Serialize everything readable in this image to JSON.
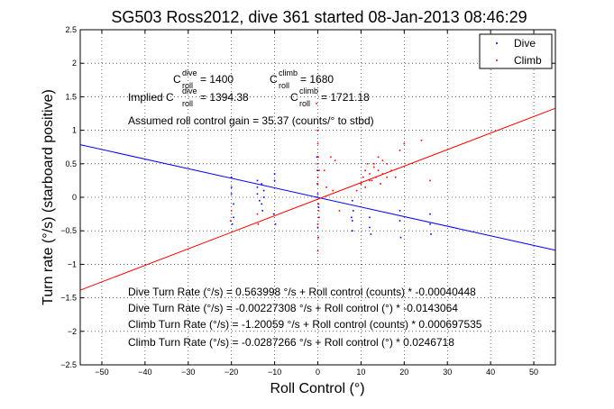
{
  "chart_data": {
    "type": "scatter",
    "title": "SG503 Ross2012, dive 361 started 08-Jan-2013 08:46:29",
    "xlabel": "Roll Control (°)",
    "ylabel": "Turn rate (°/s) (starboard positive)",
    "xlim": [
      -55,
      55
    ],
    "ylim": [
      -2.5,
      2.5
    ],
    "xticks": [
      "−50",
      "−40",
      "−30",
      "−20",
      "−10",
      "0",
      "10",
      "20",
      "30",
      "40",
      "50"
    ],
    "yticks": [
      "2.5",
      "2",
      "1.5",
      "1",
      "0.5",
      "0",
      "−0.5",
      "−1",
      "−1.5",
      "−2",
      "−2.5"
    ],
    "grid": true,
    "legend_position": "top-right",
    "legend": [
      {
        "label": "Dive",
        "color": "#0000ff"
      },
      {
        "label": "Climb",
        "color": "#ff0000"
      }
    ],
    "series": [
      {
        "name": "Dive",
        "color": "#0000ff",
        "x": [
          -20,
          -20,
          -20,
          -19.5,
          -19.5,
          -19.8,
          -14,
          -14,
          -13.5,
          -14,
          -13,
          -13,
          -12.5,
          -12.5,
          -12.8,
          -10,
          -10.2,
          -9.8,
          -10,
          -0.2,
          -0.1,
          0,
          0.1,
          0.2,
          0,
          0.1,
          -0.1,
          0.2,
          8,
          8,
          8.2,
          7.8,
          8,
          12,
          12.3,
          12,
          19,
          19.2,
          19,
          26,
          26.2,
          26
        ],
        "y": [
          0.05,
          0.15,
          0.3,
          -0.1,
          -0.3,
          -0.4,
          0.15,
          0.05,
          -0.05,
          0.25,
          0.2,
          -0.1,
          0.0,
          0.1,
          -0.2,
          0.25,
          -0.25,
          -0.4,
          0.35,
          0.6,
          0.2,
          0.05,
          -0.1,
          -0.3,
          -0.45,
          -0.6,
          0.4,
          -0.15,
          -0.35,
          -0.5,
          -0.2,
          -0.3,
          -0.05,
          -0.3,
          -0.55,
          -0.45,
          -0.35,
          -0.6,
          -0.2,
          -0.4,
          -0.55,
          -0.25
        ]
      },
      {
        "name": "Climb",
        "color": "#ff0000",
        "x": [
          -0.3,
          -0.1,
          0,
          0.1,
          0.3,
          0,
          -0.2,
          0.2,
          0,
          0.1,
          0,
          -0.1,
          0.3,
          0,
          0.2,
          3,
          3.5,
          4,
          5,
          9,
          10,
          10.5,
          11,
          11.5,
          12,
          12.5,
          13,
          13.5,
          14,
          14.5,
          15,
          16,
          17,
          18,
          11,
          12,
          13,
          14,
          15,
          16,
          19,
          20,
          24,
          26,
          -20,
          -20.2,
          -14,
          -13.8,
          1.5,
          2
        ],
        "y": [
          1.4,
          1.0,
          0.8,
          0.6,
          0.4,
          0.2,
          0.0,
          -0.2,
          -0.4,
          -0.6,
          -0.8,
          0.5,
          -0.3,
          0.3,
          -0.1,
          0.6,
          0.1,
          0.55,
          -0.2,
          0.1,
          0.2,
          0.3,
          0.4,
          0.5,
          0.35,
          0.25,
          0.45,
          0.3,
          0.6,
          0.2,
          0.35,
          0.5,
          0.4,
          0.3,
          0.15,
          0.25,
          0.5,
          0.4,
          0.55,
          0.3,
          0.7,
          0.8,
          0.85,
          0.25,
          -0.2,
          -0.35,
          -0.25,
          -0.4,
          0.4,
          0.15
        ]
      }
    ],
    "fit_lines": [
      {
        "color": "#0000ff",
        "slope": -0.0143064,
        "intercept": -0.00227308
      },
      {
        "color": "#ff0000",
        "slope": 0.0246718,
        "intercept": -0.0287266
      }
    ],
    "annotations": {
      "c_dive_symbol": "C",
      "c_dive_sup": "dive",
      "c_dive_sub": "roll",
      "c_dive_value": " = 1400",
      "c_climb_symbol": "C",
      "c_climb_sup": "climb",
      "c_climb_sub": "roll",
      "c_climb_value": " = 1680",
      "implied_prefix": "Implied C",
      "implied_dive_sup": "dive",
      "implied_dive_sub": "roll",
      "implied_dive_value": " = 1394.38",
      "implied_climb_symbol": "C",
      "implied_climb_sup": "climb",
      "implied_climb_sub": "roll",
      "implied_climb_value": " = 1721.18",
      "gain": "Assumed roll control gain = 35.37 (counts/° to stbd)",
      "eq1": "Dive Turn Rate (°/s) = 0.563998 °/s + Roll control (counts) * -0.00040448",
      "eq2": "Dive Turn Rate (°/s) = -0.00227308 °/s + Roll control (°) * -0.0143064",
      "eq3": "Climb Turn Rate (°/s) = -1.20059 °/s + Roll control (counts) * 0.000697535",
      "eq4": "Climb Turn Rate (°/s) = -0.0287266 °/s + Roll control (°) * 0.0246718"
    }
  }
}
